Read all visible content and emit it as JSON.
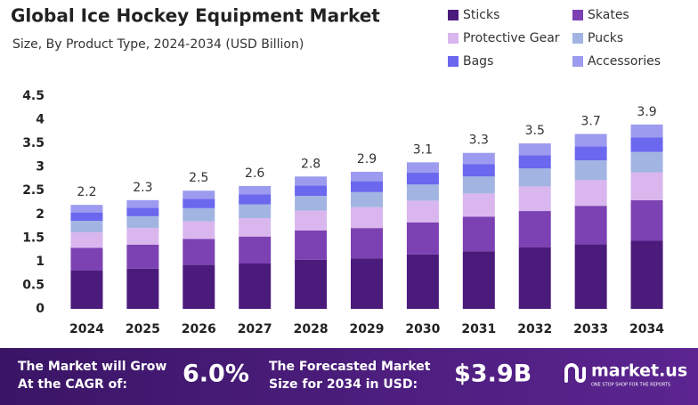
{
  "chart_data": {
    "type": "stacked_bar",
    "title": "Global Ice Hockey Equipment Market",
    "subtitle": "Size, By Product Type, 2024-2034 (USD Billion)",
    "categories": [
      "2024",
      "2025",
      "2026",
      "2027",
      "2028",
      "2029",
      "2030",
      "2031",
      "2032",
      "2033",
      "2034"
    ],
    "series": [
      {
        "name": "Sticks",
        "color": "#4b1b7c",
        "values": [
          0.81,
          0.85,
          0.93,
          0.96,
          1.04,
          1.07,
          1.15,
          1.22,
          1.3,
          1.37,
          1.44
        ]
      },
      {
        "name": "Skates",
        "color": "#7c41b2",
        "values": [
          0.48,
          0.51,
          0.55,
          0.57,
          0.62,
          0.64,
          0.68,
          0.73,
          0.77,
          0.81,
          0.86
        ]
      },
      {
        "name": "Protective Gear",
        "color": "#dab6ee",
        "values": [
          0.33,
          0.35,
          0.37,
          0.39,
          0.42,
          0.44,
          0.46,
          0.49,
          0.52,
          0.55,
          0.59
        ]
      },
      {
        "name": "Pucks",
        "color": "#a2b5e2",
        "values": [
          0.24,
          0.25,
          0.28,
          0.29,
          0.31,
          0.32,
          0.34,
          0.36,
          0.38,
          0.41,
          0.43
        ]
      },
      {
        "name": "Bags",
        "color": "#6b67ee",
        "values": [
          0.18,
          0.18,
          0.2,
          0.21,
          0.22,
          0.23,
          0.25,
          0.26,
          0.28,
          0.3,
          0.31
        ]
      },
      {
        "name": "Accessories",
        "color": "#9d9bef",
        "values": [
          0.16,
          0.16,
          0.17,
          0.18,
          0.19,
          0.2,
          0.22,
          0.24,
          0.25,
          0.26,
          0.27
        ]
      }
    ],
    "totals": [
      2.2,
      2.3,
      2.5,
      2.6,
      2.8,
      2.9,
      3.1,
      3.3,
      3.5,
      3.7,
      3.9
    ],
    "ylim": [
      0,
      4.5
    ],
    "yticks": [
      0,
      0.5,
      1,
      1.5,
      2,
      2.5,
      3,
      3.5,
      4,
      4.5
    ],
    "grid": false,
    "legend": "top-right"
  },
  "footer": {
    "cagr_text": [
      "The Market will Grow",
      "At the CAGR of:"
    ],
    "cagr_value": "6.0%",
    "forecast_text": [
      "The Forecasted Market",
      "Size for 2034 in USD:"
    ],
    "forecast_value": "$3.9B",
    "brand": "market.us",
    "tagline": "ONE STOP SHOP FOR THE REPORTS"
  }
}
